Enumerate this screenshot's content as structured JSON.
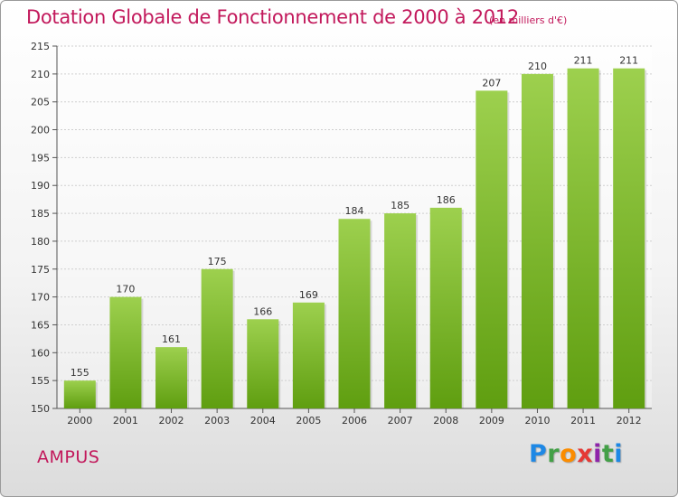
{
  "title": "Dotation Globale de Fonctionnement de 2000 à 2012",
  "unit_note": "(en milliers d'€)",
  "commune": "AMPUS",
  "logo_text": "Proxiti",
  "colors": {
    "title": "#c2185b",
    "bar_light": "#9dd04e",
    "bar_dark": "#5f9e10",
    "grid": "#cfcfcf"
  },
  "chart_data": {
    "type": "bar",
    "title": "Dotation Globale de Fonctionnement de 2000 à 2012",
    "subtitle": "(en milliers d'€)",
    "xlabel": "",
    "ylabel": "",
    "categories": [
      "2000",
      "2001",
      "2002",
      "2003",
      "2004",
      "2005",
      "2006",
      "2007",
      "2008",
      "2009",
      "2010",
      "2011",
      "2012"
    ],
    "values": [
      155,
      170,
      161,
      175,
      166,
      169,
      184,
      185,
      186,
      207,
      210,
      211,
      211
    ],
    "ylim": [
      150,
      215
    ],
    "yticks": [
      150,
      155,
      160,
      165,
      170,
      175,
      180,
      185,
      190,
      195,
      200,
      205,
      210,
      215
    ],
    "grid": true,
    "data_labels": true
  }
}
